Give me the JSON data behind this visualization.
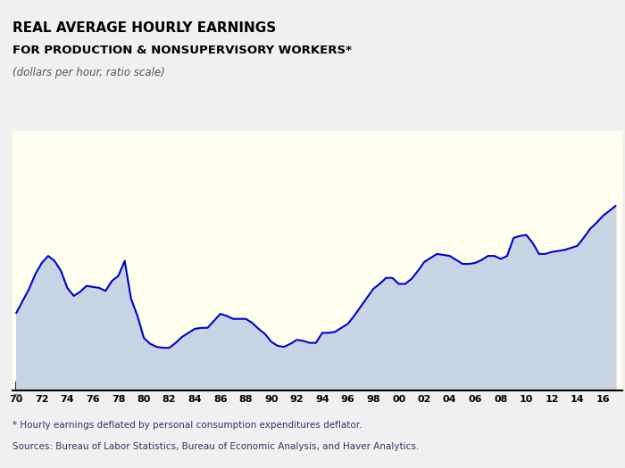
{
  "title_line1": "REAL AVERAGE HOURLY EARNINGS",
  "title_line2": "FOR PRODUCTION & NONSUPERVISORY WORKERS*",
  "subtitle": "(dollars per hour, ratio scale)",
  "footnote1": "* Hourly earnings deflated by personal consumption expenditures deflator.",
  "footnote2": "Sources: Bureau of Labor Statistics, Bureau of Economic Analysis, and Haver Analytics.",
  "line_color": "#0000CC",
  "fill_color": "#C8D4E4",
  "background_color": "#FFFFF0",
  "outer_background": "#F0F0F0",
  "x_tick_values": [
    1970,
    1972,
    1974,
    1976,
    1978,
    1980,
    1982,
    1984,
    1986,
    1988,
    1990,
    1992,
    1994,
    1996,
    1998,
    2000,
    2002,
    2004,
    2006,
    2008,
    2010,
    2012,
    2014,
    2016
  ],
  "x_tick_labels": [
    "70",
    "72",
    "74",
    "76",
    "78",
    "80",
    "82",
    "84",
    "86",
    "88",
    "90",
    "92",
    "94",
    "96",
    "98",
    "00",
    "02",
    "04",
    "06",
    "08",
    "10",
    "12",
    "14",
    "16"
  ],
  "detailed_x": [
    1970.0,
    1970.5,
    1971.0,
    1971.5,
    1972.0,
    1972.5,
    1973.0,
    1973.5,
    1974.0,
    1974.5,
    1975.0,
    1975.5,
    1976.0,
    1976.5,
    1977.0,
    1977.5,
    1978.0,
    1978.5,
    1979.0,
    1979.5,
    1980.0,
    1980.5,
    1981.0,
    1981.5,
    1982.0,
    1982.5,
    1983.0,
    1983.5,
    1984.0,
    1984.5,
    1985.0,
    1985.5,
    1986.0,
    1986.5,
    1987.0,
    1987.5,
    1988.0,
    1988.5,
    1989.0,
    1989.5,
    1990.0,
    1990.5,
    1991.0,
    1991.5,
    1992.0,
    1992.5,
    1993.0,
    1993.5,
    1994.0,
    1994.5,
    1995.0,
    1995.5,
    1996.0,
    1996.5,
    1997.0,
    1997.5,
    1998.0,
    1998.5,
    1999.0,
    1999.5,
    2000.0,
    2000.5,
    2001.0,
    2001.5,
    2002.0,
    2002.5,
    2003.0,
    2003.5,
    2004.0,
    2004.5,
    2005.0,
    2005.5,
    2006.0,
    2006.5,
    2007.0,
    2007.5,
    2008.0,
    2008.5,
    2009.0,
    2009.5,
    2010.0,
    2010.5,
    2011.0,
    2011.5,
    2012.0,
    2012.5,
    2013.0,
    2013.5,
    2014.0,
    2014.5,
    2015.0,
    2015.5,
    2016.0,
    2016.5,
    2017.0
  ],
  "detailed_y": [
    8.03,
    8.15,
    8.27,
    8.42,
    8.53,
    8.6,
    8.55,
    8.45,
    8.28,
    8.2,
    8.24,
    8.3,
    8.29,
    8.28,
    8.25,
    8.35,
    8.4,
    8.55,
    8.17,
    8.0,
    7.78,
    7.72,
    7.69,
    7.68,
    7.68,
    7.73,
    7.79,
    7.83,
    7.87,
    7.88,
    7.88,
    7.95,
    8.02,
    8.0,
    7.97,
    7.97,
    7.97,
    7.93,
    7.87,
    7.82,
    7.74,
    7.7,
    7.69,
    7.72,
    7.76,
    7.75,
    7.73,
    7.73,
    7.83,
    7.83,
    7.84,
    7.88,
    7.92,
    8.0,
    8.09,
    8.18,
    8.27,
    8.32,
    8.38,
    8.38,
    8.32,
    8.32,
    8.37,
    8.45,
    8.54,
    8.58,
    8.62,
    8.61,
    8.6,
    8.56,
    8.52,
    8.52,
    8.53,
    8.56,
    8.6,
    8.6,
    8.57,
    8.6,
    8.78,
    8.8,
    8.81,
    8.73,
    8.62,
    8.62,
    8.64,
    8.65,
    8.66,
    8.68,
    8.7,
    8.78,
    8.87,
    8.93,
    9.0,
    9.05,
    9.1
  ]
}
